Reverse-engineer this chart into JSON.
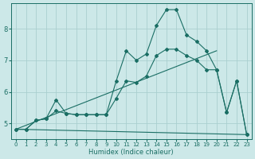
{
  "xlabel": "Humidex (Indice chaleur)",
  "bg_color": "#cce8e8",
  "line_color": "#1a6e64",
  "grid_color": "#aacfcf",
  "xlim": [
    -0.5,
    23.5
  ],
  "ylim": [
    4.5,
    8.8
  ],
  "xticks": [
    0,
    1,
    2,
    3,
    4,
    5,
    6,
    7,
    8,
    9,
    10,
    11,
    12,
    13,
    14,
    15,
    16,
    17,
    18,
    19,
    20,
    21,
    22,
    23
  ],
  "yticks": [
    5,
    6,
    7,
    8
  ],
  "line1_x": [
    0,
    1,
    2,
    3,
    4,
    5,
    6,
    7,
    8,
    9,
    10,
    11,
    12,
    13,
    14,
    15,
    16,
    17,
    18,
    19,
    20,
    21,
    22,
    23
  ],
  "line1_y": [
    4.82,
    4.82,
    5.1,
    5.15,
    5.75,
    5.32,
    5.28,
    5.28,
    5.28,
    5.28,
    6.35,
    7.3,
    7.0,
    7.2,
    8.1,
    8.6,
    8.6,
    7.8,
    7.6,
    7.3,
    6.7,
    5.35,
    6.35,
    4.65
  ],
  "line2_x": [
    0,
    1,
    2,
    3,
    4,
    5,
    6,
    7,
    8,
    9,
    10,
    11,
    12,
    13,
    14,
    15,
    16,
    17,
    18,
    19,
    20,
    21,
    22,
    23
  ],
  "line2_y": [
    4.82,
    4.82,
    5.1,
    5.15,
    5.4,
    5.32,
    5.28,
    5.28,
    5.28,
    5.28,
    5.8,
    6.35,
    6.3,
    6.5,
    7.15,
    7.35,
    7.35,
    7.15,
    7.0,
    6.7,
    6.7,
    5.35,
    6.35,
    4.65
  ],
  "line3_x": [
    0,
    23
  ],
  "line3_y": [
    4.82,
    4.65
  ],
  "line4_x": [
    0,
    20
  ],
  "line4_y": [
    4.82,
    7.3
  ]
}
